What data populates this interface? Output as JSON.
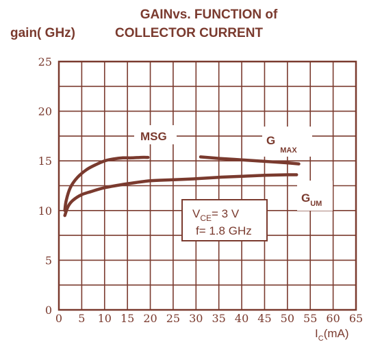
{
  "colors": {
    "ink": "#7a3a2e",
    "grid": "#7a3a2e",
    "background": "#ffffff"
  },
  "chart_data": {
    "type": "line",
    "title_line1": "GAINvs.  FUNCTION of",
    "title_line2": "COLLECTOR CURRENT",
    "ylabel": "gain( GHz)",
    "xlabel_main": "I",
    "xlabel_sub": "C",
    "xlabel_unit": "(mA)",
    "xlim": [
      0,
      65
    ],
    "ylim": [
      0,
      25
    ],
    "x_ticks": [
      0,
      5,
      10,
      15,
      20,
      25,
      30,
      35,
      40,
      45,
      50,
      55,
      60,
      65
    ],
    "y_ticks": [
      0,
      5,
      10,
      15,
      20,
      25
    ],
    "x_grid_step": 5,
    "y_grid_step": 2.5,
    "grid": true,
    "annotation_box": {
      "line1_main": "V",
      "line1_sub": "CE",
      "line1_rest": "= 3  V",
      "line2": "f= 1.8 GHz"
    },
    "series": [
      {
        "name": "MSG",
        "x": [
          1.3,
          1.6,
          2.5,
          4,
          6,
          8,
          10,
          12,
          14,
          16,
          18,
          19.5
        ],
        "y": [
          10.0,
          11.0,
          12.3,
          13.3,
          14.1,
          14.6,
          15.0,
          15.2,
          15.3,
          15.3,
          15.35,
          15.35
        ]
      },
      {
        "name_main": "G",
        "name_sub": "MAX",
        "x": [
          31,
          35,
          40,
          45,
          50,
          52.5
        ],
        "y": [
          15.4,
          15.25,
          15.1,
          14.95,
          14.8,
          14.7
        ]
      },
      {
        "name_main": "G",
        "name_sub": "UM",
        "x": [
          1.3,
          2,
          3,
          5,
          7,
          10,
          15,
          20,
          25,
          30,
          35,
          40,
          45,
          50,
          52
        ],
        "y": [
          9.5,
          10.4,
          11.0,
          11.6,
          11.9,
          12.3,
          12.7,
          13.0,
          13.1,
          13.2,
          13.35,
          13.45,
          13.55,
          13.6,
          13.6
        ]
      }
    ]
  }
}
